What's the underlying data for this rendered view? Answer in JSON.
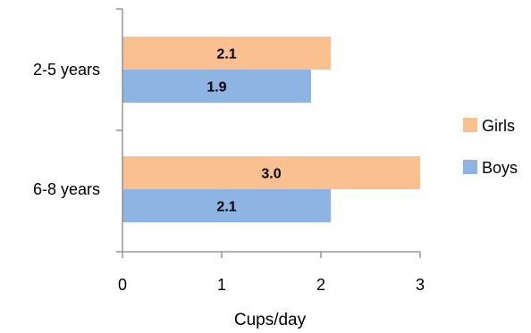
{
  "chart_data": {
    "type": "bar",
    "orientation": "horizontal",
    "categories": [
      "2-5 years",
      "6-8 years"
    ],
    "series": [
      {
        "name": "Girls",
        "values": [
          2.1,
          3.0
        ],
        "value_labels": [
          "2.1",
          "3.0"
        ],
        "color": "#FAC090"
      },
      {
        "name": "Boys",
        "values": [
          1.9,
          2.1
        ],
        "value_labels": [
          "1.9",
          "2.1"
        ],
        "color": "#8EB4E3"
      }
    ],
    "xlabel": "Cups/day",
    "ylabel": "",
    "xlim": [
      0,
      3
    ],
    "x_ticks": [
      "0",
      "1",
      "2",
      "3"
    ],
    "grid": false,
    "legend_position": "right",
    "legend": [
      "Girls",
      "Boys"
    ]
  }
}
